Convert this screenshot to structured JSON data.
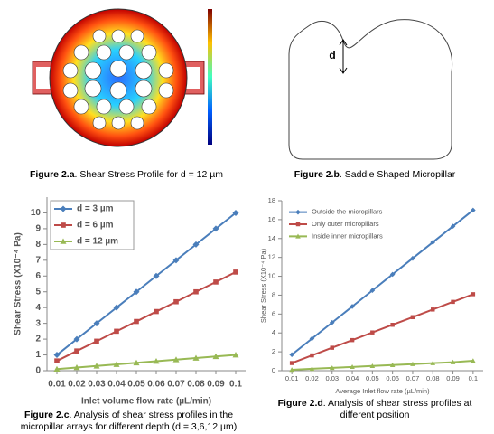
{
  "figures": [
    {
      "label": "Figure 2.a",
      "text": ". Shear Stress Profile for d = 12 µm"
    },
    {
      "label": "Figure 2.b",
      "text": ". Saddle Shaped Micropillar"
    },
    {
      "label": "Figure 2.c",
      "text": ". Analysis of shear stress profiles  in the micropillar arrays for different depth (d = 3,6,12 µm)"
    },
    {
      "label": "Figure 2.d",
      "text": ". Analysis of shear stress profiles at different position"
    }
  ],
  "diagram": {
    "label": "d"
  },
  "chart_data": [
    {
      "type": "line",
      "xlabel": "Inlet volume flow rate (µL/min)",
      "ylabel": "Shear Stress (X10⁻⁴ Pa)",
      "x": [
        0.01,
        0.02,
        0.03,
        0.04,
        0.05,
        0.06,
        0.07,
        0.08,
        0.09,
        0.1
      ],
      "xlim": [
        0.005,
        0.105
      ],
      "xticks": [
        0.01,
        0.02,
        0.03,
        0.04,
        0.05,
        0.06,
        0.07,
        0.08,
        0.09,
        0.1
      ],
      "ylim": [
        0,
        11
      ],
      "yticks": [
        0,
        1,
        2,
        3,
        4,
        5,
        6,
        7,
        8,
        9,
        10
      ],
      "legend": "upper left",
      "grid": false,
      "series": [
        {
          "name": "d = 3 µm",
          "color": "#4a7ebb",
          "marker": "diamond",
          "values": [
            1,
            2,
            3,
            4,
            5,
            6,
            7,
            8,
            9,
            10
          ]
        },
        {
          "name": "d = 6 µm",
          "color": "#be4b48",
          "marker": "square",
          "values": [
            0.62,
            1.25,
            1.87,
            2.5,
            3.12,
            3.75,
            4.37,
            5,
            5.62,
            6.25
          ]
        },
        {
          "name": "d = 12 µm",
          "color": "#98b954",
          "marker": "triangle",
          "values": [
            0.1,
            0.2,
            0.3,
            0.4,
            0.5,
            0.6,
            0.7,
            0.8,
            0.9,
            1
          ]
        }
      ]
    },
    {
      "type": "line",
      "xlabel": "Average Inlet flow rate (µL/min)",
      "ylabel": "Shear Stress (X10⁻⁴ Pa)",
      "x": [
        0.01,
        0.02,
        0.03,
        0.04,
        0.05,
        0.06,
        0.07,
        0.08,
        0.09,
        0.1
      ],
      "xlim": [
        0.005,
        0.105
      ],
      "xticks": [
        0.01,
        0.02,
        0.03,
        0.04,
        0.05,
        0.06,
        0.07,
        0.08,
        0.09,
        0.1
      ],
      "ylim": [
        0,
        18
      ],
      "yticks": [
        0,
        2,
        4,
        6,
        8,
        10,
        12,
        14,
        16,
        18
      ],
      "legend": "upper left",
      "grid": false,
      "series": [
        {
          "name": "Outside the micropillars",
          "color": "#4a7ebb",
          "marker": "diamond",
          "values": [
            1.7,
            3.4,
            5.1,
            6.8,
            8.5,
            10.2,
            11.9,
            13.6,
            15.3,
            17
          ]
        },
        {
          "name": "Only outer micropillars",
          "color": "#be4b48",
          "marker": "square",
          "values": [
            0.81,
            1.62,
            2.43,
            3.24,
            4.05,
            4.86,
            5.67,
            6.48,
            7.29,
            8.1
          ]
        },
        {
          "name": "Inside inner  micropillars",
          "color": "#98b954",
          "marker": "triangle",
          "values": [
            0.1,
            0.2,
            0.3,
            0.4,
            0.5,
            0.6,
            0.7,
            0.8,
            0.9,
            1.05
          ]
        }
      ]
    }
  ]
}
